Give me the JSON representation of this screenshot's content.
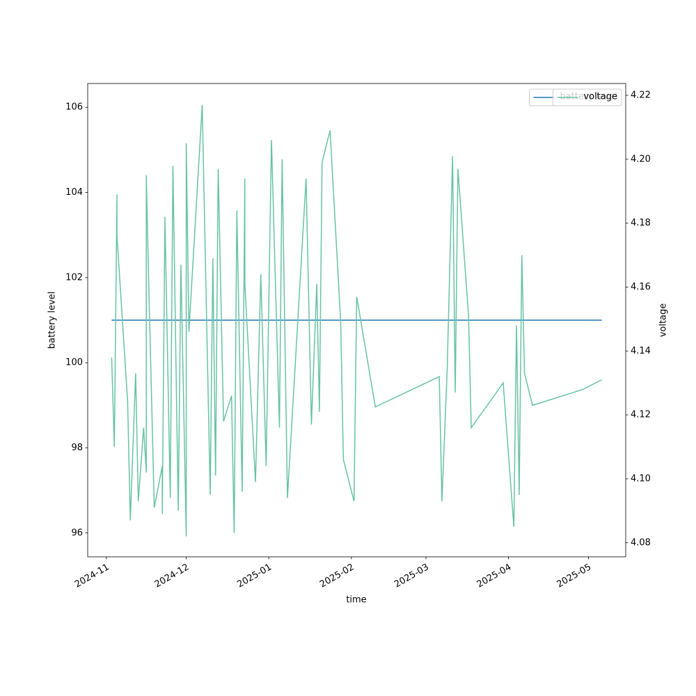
{
  "chart_data": {
    "type": "line",
    "xlabel": "time",
    "ylabel": "battery level",
    "y2label": "voltage",
    "x": [
      "2024-11-03",
      "2024-11-04",
      "2024-11-05",
      "2024-11-05",
      "2024-11-09",
      "2024-11-10",
      "2024-11-12",
      "2024-11-13",
      "2024-11-15",
      "2024-11-16",
      "2024-11-16",
      "2024-11-17",
      "2024-11-19",
      "2024-11-22",
      "2024-11-22",
      "2024-11-23",
      "2024-11-25",
      "2024-11-26",
      "2024-11-28",
      "2024-11-29",
      "2024-12-01",
      "2024-12-01",
      "2024-12-02",
      "2024-12-07",
      "2024-12-10",
      "2024-12-11",
      "2024-12-12",
      "2024-12-13",
      "2024-12-15",
      "2024-12-18",
      "2024-12-19",
      "2024-12-20",
      "2024-12-22",
      "2024-12-23",
      "2024-12-23",
      "2024-12-27",
      "2024-12-29",
      "2024-12-31",
      "2025-01-02",
      "2025-01-05",
      "2025-01-06",
      "2025-01-08",
      "2025-01-15",
      "2025-01-17",
      "2025-01-19",
      "2025-01-20",
      "2025-01-21",
      "2025-01-24",
      "2025-01-28",
      "2025-01-29",
      "2025-02-02",
      "2025-02-03",
      "2025-02-10",
      "2025-03-06",
      "2025-03-07",
      "2025-03-09",
      "2025-03-11",
      "2025-03-12",
      "2025-03-13",
      "2025-03-17",
      "2025-03-18",
      "2025-03-30",
      "2025-04-03",
      "2025-04-04",
      "2025-04-05",
      "2025-04-06",
      "2025-04-07",
      "2025-04-10",
      "2025-04-29",
      "2025-05-06"
    ],
    "series": [
      {
        "name": "battery level",
        "color": "#1f77b4",
        "values": [
          101,
          101,
          101,
          101,
          101,
          101,
          101,
          101,
          101,
          101,
          101,
          101,
          101,
          101,
          101,
          101,
          101,
          101,
          101,
          101,
          101,
          101,
          101,
          101,
          101,
          101,
          101,
          101,
          101,
          101,
          101,
          101,
          101,
          101,
          101,
          101,
          101,
          101,
          101,
          101,
          101,
          101,
          101,
          101,
          101,
          101,
          101,
          101,
          101,
          101,
          101,
          101,
          101,
          101,
          101,
          101,
          101,
          101,
          101,
          101,
          101,
          101,
          101,
          101,
          101,
          101,
          101,
          101,
          101,
          101
        ]
      },
      {
        "name": "voltage",
        "color": "#66c2a5",
        "axis": "y2",
        "values": [
          4.138,
          4.11,
          4.189,
          4.176,
          4.124,
          4.087,
          4.133,
          4.093,
          4.116,
          4.102,
          4.195,
          4.158,
          4.091,
          4.104,
          4.089,
          4.182,
          4.094,
          4.198,
          4.09,
          4.167,
          4.082,
          4.205,
          4.146,
          4.217,
          4.095,
          4.169,
          4.101,
          4.197,
          4.118,
          4.126,
          4.083,
          4.184,
          4.096,
          4.194,
          4.161,
          4.099,
          4.164,
          4.104,
          4.206,
          4.116,
          4.2,
          4.094,
          4.194,
          4.117,
          4.161,
          4.121,
          4.199,
          4.209,
          4.149,
          4.106,
          4.093,
          4.157,
          4.1225,
          4.132,
          4.093,
          4.135,
          4.201,
          4.127,
          4.197,
          4.151,
          4.116,
          4.13,
          4.085,
          4.148,
          4.095,
          4.17,
          4.133,
          4.123,
          4.128,
          4.131
        ]
      }
    ],
    "xlim": [
      "2024-10-25",
      "2025-05-15"
    ],
    "xticks": [
      {
        "value": "2024-11-01",
        "label": "2024-11"
      },
      {
        "value": "2024-12-01",
        "label": "2024-12"
      },
      {
        "value": "2025-01-01",
        "label": "2025-01"
      },
      {
        "value": "2025-02-01",
        "label": "2025-02"
      },
      {
        "value": "2025-03-01",
        "label": "2025-03"
      },
      {
        "value": "2025-04-01",
        "label": "2025-04"
      },
      {
        "value": "2025-05-01",
        "label": "2025-05"
      }
    ],
    "ylim": [
      95.44,
      106.56
    ],
    "yticks": [
      96,
      98,
      100,
      102,
      104,
      106
    ],
    "y2lim": [
      4.0756,
      4.2237
    ],
    "y2ticks": [
      4.08,
      {
        "value": 4.1,
        "label": "4.10"
      },
      4.12,
      4.14,
      4.16,
      4.18,
      {
        "value": 4.2,
        "label": "4.20"
      },
      4.22
    ],
    "legend": "upper right",
    "grid": false
  }
}
